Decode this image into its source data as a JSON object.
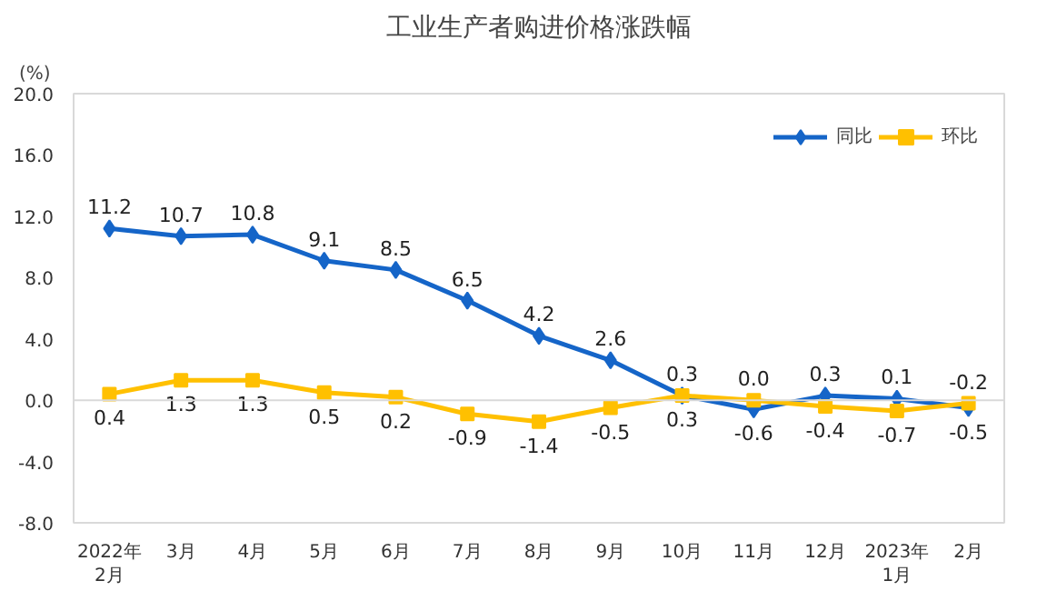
{
  "chart_data": {
    "type": "line",
    "title": "工业生产者购进价格涨跌幅",
    "ylabel": "(%)",
    "categories": [
      "2022年\n2月",
      "3月",
      "4月",
      "5月",
      "6月",
      "7月",
      "8月",
      "9月",
      "10月",
      "11月",
      "12月",
      "2023年\n1月",
      "2月"
    ],
    "series": [
      {
        "name": "同比",
        "color": "#1565c8",
        "marker": "diamond",
        "values": [
          11.2,
          10.7,
          10.8,
          9.1,
          8.5,
          6.5,
          4.2,
          2.6,
          0.3,
          -0.6,
          0.3,
          0.1,
          -0.5
        ],
        "value_labels": [
          "11.2",
          "10.7",
          "10.8",
          "9.1",
          "8.5",
          "6.5",
          "4.2",
          "2.6",
          "0.3",
          "-0.6",
          "0.3",
          "0.1",
          "-0.5"
        ]
      },
      {
        "name": "环比",
        "color": "#ffc000",
        "marker": "square",
        "values": [
          0.4,
          1.3,
          1.3,
          0.5,
          0.2,
          -0.9,
          -1.4,
          -0.5,
          0.3,
          0.0,
          -0.4,
          -0.7,
          -0.2
        ],
        "value_labels": [
          "0.4",
          "1.3",
          "1.3",
          "0.5",
          "0.2",
          "-0.9",
          "-1.4",
          "-0.5",
          "0.3",
          "0.0",
          "-0.4",
          "-0.7",
          "-0.2"
        ]
      }
    ],
    "ylim": [
      -8,
      20
    ],
    "yticks": [
      {
        "value": -8,
        "label": "-8.0"
      },
      {
        "value": -4,
        "label": "-4.0"
      },
      {
        "value": 0,
        "label": "0.0"
      },
      {
        "value": 4,
        "label": "4.0"
      },
      {
        "value": 8,
        "label": "8.0"
      },
      {
        "value": 12,
        "label": "12.0"
      },
      {
        "value": 16,
        "label": "16.0"
      },
      {
        "value": 20,
        "label": "20.0"
      }
    ],
    "ref_lines": [
      {
        "axis": "y",
        "value": 0,
        "color": "#d9d9d9"
      }
    ],
    "legend": "top right",
    "grid": false,
    "line_style": "solid"
  }
}
